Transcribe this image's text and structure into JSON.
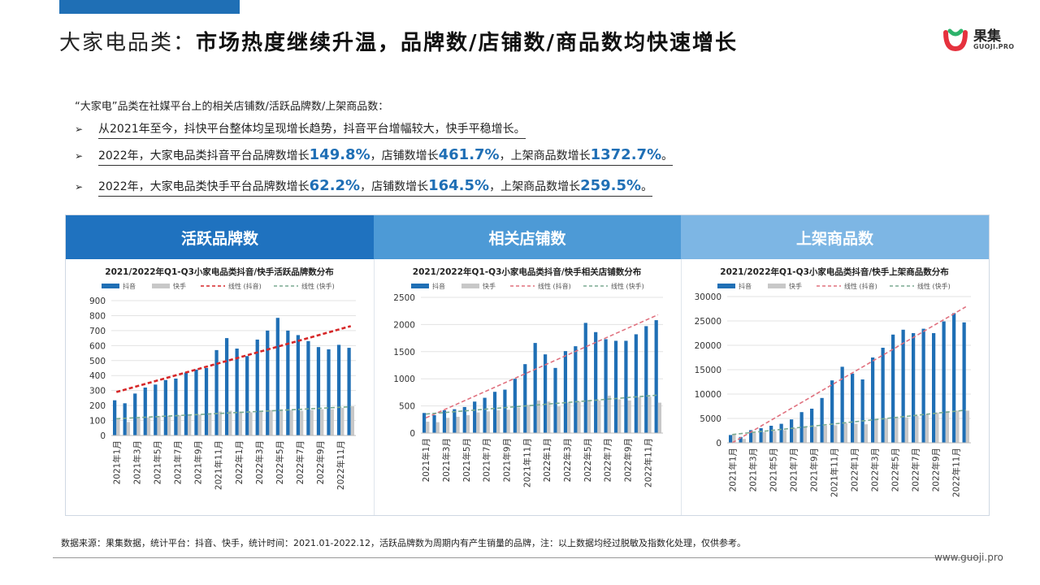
{
  "title": {
    "prefix": "大家电品类：",
    "main": "市场热度继续升温，品牌数/店铺数/商品数均快速增长"
  },
  "logo": {
    "name": "果集",
    "sub": "GUOJI.PRO"
  },
  "intro": "“大家电”品类在社媒平台上的相关店铺数/活跃品牌数/上架商品数：",
  "bullets": [
    {
      "text": "从2021年至今，抖快平台整体均呈现增长趋势，抖音平台增幅较大，快手平稳增长。"
    },
    {
      "p1": "2022年，大家电品类抖音平台品牌数增长",
      "v1": "149.8%",
      "p2": "，店铺数增长",
      "v2": "461.7%",
      "p3": "，上架商品数增长",
      "v3": "1372.7%",
      "p4": "。"
    },
    {
      "p1": "2022年，大家电品类快手平台品牌数增长",
      "v1": "62.2%",
      "p2": "，店铺数增长",
      "v2": "164.5%",
      "p3": "，上架商品数增长",
      "v3": "259.5%",
      "p4": "。"
    }
  ],
  "panels": {
    "p1": "活跃品牌数",
    "p2": "相关店铺数",
    "p3": "上架商品数"
  },
  "footnote": "数据来源：果集数据，统计平台：抖音、快手，统计时间：2021.01-2022.12，活跃品牌数为周期内有产生销量的品牌，注：以上数据均经过脱敏及指数化处理，仅供参考。",
  "url": "www.guoji.pro",
  "colors": {
    "douyin": "#1f6fb5",
    "kuaishou": "#c8c8c8",
    "trend_douyin_brand": "#d62728",
    "trend_douyin": "#e0707e",
    "trend_kuaishou": "#7aaa90"
  },
  "legend": {
    "s1": "抖音",
    "s2": "快手",
    "t1": "线性 (抖音)",
    "t2": "线性 (快手)"
  },
  "chart_data": [
    {
      "type": "bar",
      "title": "2021/2022年Q1-Q3小家电品类抖音/快手活跃品牌数分布",
      "categories": [
        "2021年1月",
        "2021年2月",
        "2021年3月",
        "2021年4月",
        "2021年5月",
        "2021年6月",
        "2021年7月",
        "2021年8月",
        "2021年9月",
        "2021年10月",
        "2021年11月",
        "2021年12月",
        "2022年1月",
        "2022年2月",
        "2022年3月",
        "2022年4月",
        "2022年5月",
        "2022年6月",
        "2022年7月",
        "2022年8月",
        "2022年9月",
        "2022年10月",
        "2022年11月",
        "2022年12月"
      ],
      "x_tick_labels": [
        "2021年1月",
        "2021年3月",
        "2021年5月",
        "2021年7月",
        "2021年9月",
        "2021年11月",
        "2022年1月",
        "2022年3月",
        "2022年5月",
        "2022年7月",
        "2022年9月",
        "2022年11月"
      ],
      "series": [
        {
          "name": "抖音",
          "values": [
            235,
            215,
            280,
            320,
            340,
            370,
            380,
            420,
            440,
            450,
            570,
            650,
            580,
            530,
            640,
            700,
            785,
            700,
            670,
            630,
            590,
            575,
            605,
            585
          ]
        },
        {
          "name": "快手",
          "values": [
            110,
            90,
            115,
            120,
            130,
            130,
            135,
            140,
            140,
            150,
            160,
            165,
            160,
            155,
            165,
            170,
            175,
            170,
            165,
            170,
            175,
            175,
            185,
            195
          ]
        }
      ],
      "trendlines": [
        {
          "name": "线性 (抖音)",
          "start": 290,
          "end": 730
        },
        {
          "name": "线性 (快手)",
          "start": 112,
          "end": 192
        }
      ],
      "ylim": [
        0,
        900
      ],
      "yticks": [
        0,
        100,
        200,
        300,
        400,
        500,
        600,
        700,
        800,
        900
      ]
    },
    {
      "type": "bar",
      "title": "2021/2022年Q1-Q3小家电品类抖音/快手相关店铺数分布",
      "categories": [
        "2021年1月",
        "2021年2月",
        "2021年3月",
        "2021年4月",
        "2021年5月",
        "2021年6月",
        "2021年7月",
        "2021年8月",
        "2021年9月",
        "2021年10月",
        "2021年11月",
        "2021年12月",
        "2022年1月",
        "2022年2月",
        "2022年3月",
        "2022年4月",
        "2022年5月",
        "2022年6月",
        "2022年7月",
        "2022年8月",
        "2022年9月",
        "2022年10月",
        "2022年11月",
        "2022年12月"
      ],
      "x_tick_labels": [
        "2021年1月",
        "2021年3月",
        "2021年5月",
        "2021年7月",
        "2021年9月",
        "2021年11月",
        "2022年1月",
        "2022年3月",
        "2022年5月",
        "2022年7月",
        "2022年9月",
        "2022年11月"
      ],
      "series": [
        {
          "name": "抖音",
          "values": [
            370,
            330,
            420,
            440,
            480,
            580,
            650,
            760,
            800,
            1000,
            1270,
            1660,
            1450,
            1200,
            1510,
            1600,
            2030,
            1860,
            1730,
            1700,
            1700,
            1820,
            1970,
            2080
          ]
        },
        {
          "name": "快手",
          "values": [
            210,
            200,
            280,
            300,
            330,
            380,
            400,
            420,
            430,
            470,
            520,
            600,
            580,
            490,
            560,
            580,
            610,
            600,
            690,
            620,
            600,
            660,
            670,
            560
          ]
        }
      ],
      "trendlines": [
        {
          "name": "线性 (抖音)",
          "start": 280,
          "end": 2180
        },
        {
          "name": "线性 (快手)",
          "start": 350,
          "end": 700
        }
      ],
      "ylim": [
        0,
        2500
      ],
      "yticks": [
        0,
        500,
        1000,
        1500,
        2000,
        2500
      ]
    },
    {
      "type": "bar",
      "title": "2021/2022年Q1-Q3小家电品类抖音/快手上架商品数分布",
      "categories": [
        "2021年1月",
        "2021年2月",
        "2021年3月",
        "2021年4月",
        "2021年5月",
        "2021年6月",
        "2021年7月",
        "2021年8月",
        "2021年9月",
        "2021年10月",
        "2021年11月",
        "2021年12月",
        "2022年1月",
        "2022年2月",
        "2022年3月",
        "2022年4月",
        "2022年5月",
        "2022年6月",
        "2022年7月",
        "2022年8月",
        "2022年9月",
        "2022年10月",
        "2022年11月",
        "2022年12月"
      ],
      "x_tick_labels": [
        "2021年1月",
        "2021年3月",
        "2021年5月",
        "2021年7月",
        "2021年9月",
        "2021年11月",
        "2022年1月",
        "2022年3月",
        "2022年5月",
        "2022年7月",
        "2022年9月",
        "2022年11月"
      ],
      "series": [
        {
          "name": "抖音",
          "values": [
            1600,
            1200,
            2600,
            3000,
            3500,
            3900,
            4800,
            6300,
            7000,
            9200,
            12800,
            15600,
            14200,
            13000,
            17500,
            19500,
            22200,
            23200,
            22500,
            23400,
            22500,
            24900,
            26600,
            24700
          ]
        },
        {
          "name": "快手",
          "values": [
            1800,
            800,
            2000,
            2200,
            2400,
            2600,
            3000,
            3200,
            3300,
            3500,
            3600,
            4000,
            3900,
            3800,
            4800,
            5000,
            5300,
            5200,
            5500,
            5800,
            6200,
            6500,
            6600,
            6600
          ]
        }
      ],
      "trendlines": [
        {
          "name": "线性 (抖音)",
          "start": 0,
          "end": 27900
        },
        {
          "name": "线性 (快手)",
          "start": 1700,
          "end": 6700
        }
      ],
      "ylim": [
        0,
        30000
      ],
      "yticks": [
        0,
        5000,
        10000,
        15000,
        20000,
        25000,
        30000
      ]
    }
  ]
}
